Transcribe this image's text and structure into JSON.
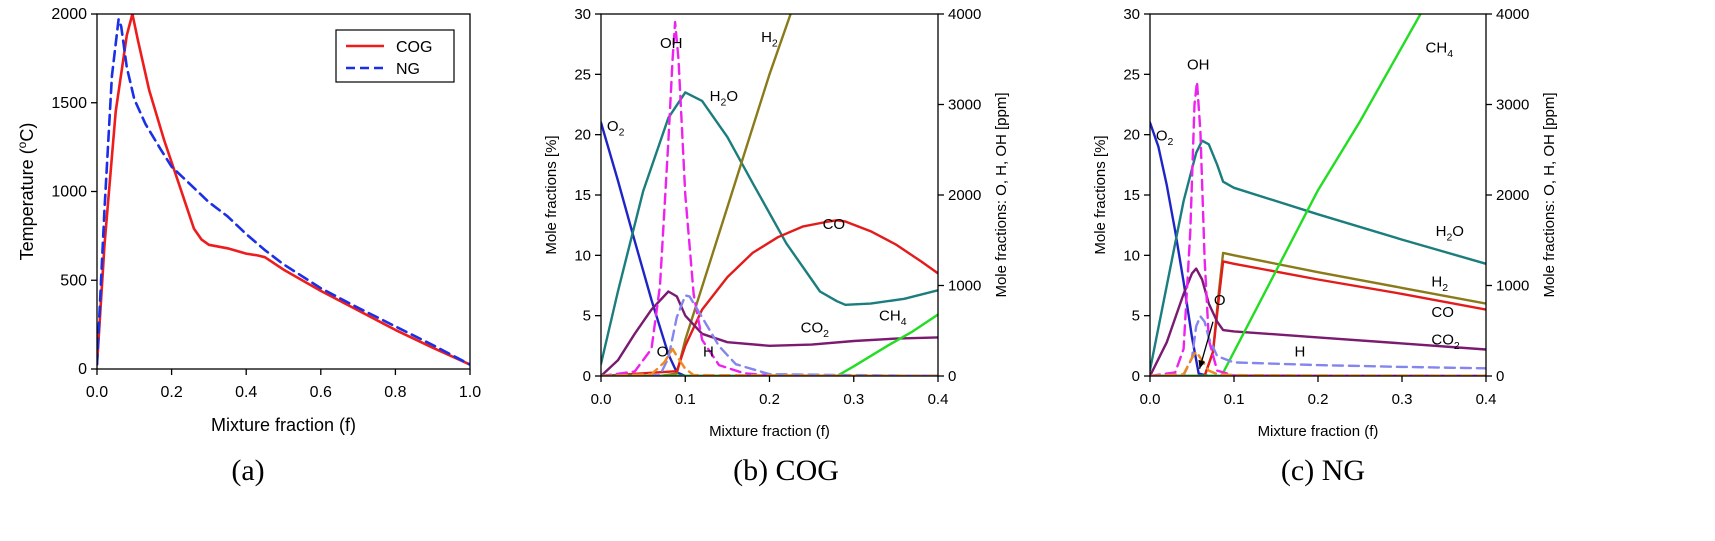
{
  "chart_data": [
    {
      "id": "a",
      "caption": "(a)",
      "type": "line",
      "xlabel": "Mixture fraction (f)",
      "ylabel": "Temperature (°C)",
      "ylabel_sup": "o",
      "xlim": [
        0,
        1.0
      ],
      "ylim": [
        0,
        2000
      ],
      "xticks": [
        "0.0",
        "0.2",
        "0.4",
        "0.6",
        "0.8",
        "1.0"
      ],
      "yticks": [
        "0",
        "500",
        "1000",
        "1500",
        "2000"
      ],
      "legend": {
        "position": "top-right",
        "entries": [
          "COG",
          "NG"
        ]
      },
      "series": [
        {
          "name": "COG",
          "color": "#ee1c1c",
          "dash": "solid",
          "x": [
            0,
            0.02,
            0.05,
            0.08,
            0.095,
            0.11,
            0.14,
            0.18,
            0.22,
            0.26,
            0.28,
            0.3,
            0.35,
            0.4,
            0.43,
            0.45,
            0.5,
            0.6,
            0.7,
            0.8,
            0.9,
            1.0
          ],
          "y": [
            25,
            700,
            1450,
            1880,
            2000,
            1850,
            1570,
            1290,
            1040,
            790,
            730,
            700,
            680,
            650,
            640,
            630,
            560,
            440,
            330,
            220,
            120,
            25
          ]
        },
        {
          "name": "NG",
          "color": "#1a2fe6",
          "dash": "dashed",
          "x": [
            0,
            0.02,
            0.04,
            0.058,
            0.065,
            0.08,
            0.1,
            0.13,
            0.17,
            0.2,
            0.25,
            0.3,
            0.35,
            0.4,
            0.45,
            0.5,
            0.6,
            0.7,
            0.8,
            0.9,
            1.0
          ],
          "y": [
            25,
            900,
            1650,
            1970,
            1930,
            1700,
            1520,
            1380,
            1240,
            1140,
            1040,
            940,
            860,
            760,
            670,
            590,
            455,
            345,
            240,
            135,
            25
          ]
        }
      ]
    },
    {
      "id": "b",
      "caption": "(b) COG",
      "type": "line",
      "xlabel": "Mixture fraction (f)",
      "ylabel": "Mole fractions [%]",
      "ylabel_right": "Mole fractions: O, H, OH [ppm]",
      "xlim": [
        0,
        0.4
      ],
      "ylim": [
        0,
        30
      ],
      "ylim_right": [
        0,
        4000
      ],
      "xticks": [
        "0.0",
        "0.1",
        "0.2",
        "0.3",
        "0.4"
      ],
      "yticks": [
        "0",
        "5",
        "10",
        "15",
        "20",
        "25",
        "30"
      ],
      "yticks_right": [
        "0",
        "1000",
        "2000",
        "3000",
        "4000"
      ],
      "labels": [
        {
          "text": "OH",
          "sub": "",
          "fx": 0.07,
          "fy": 27.2
        },
        {
          "text": "H",
          "sub": "2",
          "fx": 0.19,
          "fy": 27.7
        },
        {
          "text": "O",
          "sub": "2",
          "fx": 0.007,
          "fy": 20.3
        },
        {
          "text": "H",
          "sub": "2",
          "fx": 0.129,
          "fy": 22.8,
          "after": "O"
        },
        {
          "text": "CO",
          "sub": "",
          "fx": 0.263,
          "fy": 12.2
        },
        {
          "text": "CO",
          "sub": "2",
          "fx": 0.237,
          "fy": 3.6
        },
        {
          "text": "CH",
          "sub": "4",
          "fx": 0.33,
          "fy": 4.6
        },
        {
          "text": "O",
          "sub": "",
          "fx": 0.066,
          "fy": 1.6
        },
        {
          "text": "H",
          "sub": "",
          "fx": 0.121,
          "fy": 1.6
        }
      ],
      "series": [
        {
          "name": "O2",
          "axis": "left",
          "color": "#1f24c8",
          "dash": "solid",
          "x": [
            0,
            0.02,
            0.04,
            0.06,
            0.08,
            0.09,
            0.1,
            0.4
          ],
          "y": [
            21,
            16.2,
            11.2,
            6.3,
            1.8,
            0.3,
            0,
            0
          ]
        },
        {
          "name": "H2O",
          "axis": "left",
          "color": "#1b7d7d",
          "dash": "solid",
          "x": [
            0,
            0.02,
            0.05,
            0.08,
            0.1,
            0.12,
            0.15,
            0.18,
            0.22,
            0.26,
            0.28,
            0.29,
            0.32,
            0.36,
            0.4
          ],
          "y": [
            1,
            7,
            15.3,
            21.4,
            23.5,
            22.8,
            19.8,
            16,
            11,
            7,
            6.2,
            5.9,
            6,
            6.4,
            7.1
          ]
        },
        {
          "name": "H2",
          "axis": "left",
          "color": "#8a7a1a",
          "dash": "solid",
          "x": [
            0,
            0.07,
            0.09,
            0.1,
            0.15,
            0.2,
            0.225
          ],
          "y": [
            0,
            0,
            0.2,
            3,
            14,
            25,
            30
          ]
        },
        {
          "name": "CO",
          "axis": "left",
          "color": "#e31b1b",
          "dash": "solid",
          "x": [
            0,
            0.09,
            0.1,
            0.12,
            0.15,
            0.18,
            0.21,
            0.24,
            0.27,
            0.28,
            0.29,
            0.32,
            0.35,
            0.38,
            0.4
          ],
          "y": [
            0,
            0.4,
            2.5,
            5.5,
            8.2,
            10.2,
            11.5,
            12.4,
            12.8,
            12.9,
            12.8,
            12,
            10.9,
            9.5,
            8.5
          ]
        },
        {
          "name": "CO2",
          "axis": "left",
          "color": "#7a1a70",
          "dash": "solid",
          "x": [
            0,
            0.02,
            0.04,
            0.06,
            0.08,
            0.09,
            0.1,
            0.12,
            0.15,
            0.2,
            0.25,
            0.3,
            0.35,
            0.4
          ],
          "y": [
            0,
            1.3,
            3.5,
            5.5,
            7,
            6.6,
            5,
            3.5,
            2.8,
            2.5,
            2.6,
            2.9,
            3.1,
            3.2
          ]
        },
        {
          "name": "CH4",
          "axis": "left",
          "color": "#22dd22",
          "dash": "solid",
          "x": [
            0,
            0.28,
            0.3,
            0.34,
            0.37,
            0.4
          ],
          "y": [
            0,
            0,
            0.8,
            2.5,
            3.7,
            5.1
          ]
        },
        {
          "name": "OH",
          "axis": "right",
          "color": "#ee22ee",
          "dash": "dashed",
          "x": [
            0,
            0.04,
            0.06,
            0.07,
            0.08,
            0.085,
            0.088,
            0.092,
            0.1,
            0.11,
            0.12,
            0.14,
            0.17,
            0.2,
            0.4
          ],
          "y": [
            0,
            50,
            300,
            1000,
            2600,
            3500,
            3910,
            3500,
            2000,
            900,
            400,
            120,
            30,
            5,
            0
          ]
        },
        {
          "name": "H",
          "axis": "right",
          "color": "#8585ee",
          "dash": "dashed",
          "x": [
            0,
            0.07,
            0.08,
            0.09,
            0.1,
            0.105,
            0.12,
            0.14,
            0.16,
            0.2,
            0.4
          ],
          "y": [
            0,
            10,
            200,
            650,
            890,
            880,
            650,
            330,
            130,
            20,
            0
          ]
        },
        {
          "name": "O",
          "axis": "right",
          "color": "#ee8a20",
          "dash": "dashed",
          "x": [
            0,
            0.06,
            0.075,
            0.085,
            0.09,
            0.1,
            0.11,
            0.4
          ],
          "y": [
            0,
            20,
            150,
            300,
            220,
            80,
            10,
            0
          ]
        }
      ]
    },
    {
      "id": "c",
      "caption": "(c) NG",
      "type": "line",
      "xlabel": "Mixture fraction (f)",
      "ylabel": "Mole fractions [%]",
      "ylabel_right": "Mole fractions: O, H, OH [ppm]",
      "xlim": [
        0,
        0.4
      ],
      "ylim": [
        0,
        30
      ],
      "ylim_right": [
        0,
        4000
      ],
      "xticks": [
        "0.0",
        "0.1",
        "0.2",
        "0.3",
        "0.4"
      ],
      "yticks": [
        "0",
        "5",
        "10",
        "15",
        "20",
        "25",
        "30"
      ],
      "yticks_right": [
        "0",
        "1000",
        "2000",
        "3000",
        "4000"
      ],
      "labels": [
        {
          "text": "OH",
          "sub": "",
          "fx": 0.044,
          "fy": 25.4
        },
        {
          "text": "O",
          "sub": "2",
          "fx": 0.007,
          "fy": 19.5
        },
        {
          "text": "CH",
          "sub": "4",
          "fx": 0.328,
          "fy": 26.8
        },
        {
          "text": "H",
          "sub": "2",
          "fx": 0.34,
          "fy": 11.6,
          "after": "O"
        },
        {
          "text": "H",
          "sub": "2",
          "fx": 0.335,
          "fy": 7.4
        },
        {
          "text": "CO",
          "sub": "",
          "fx": 0.335,
          "fy": 4.9
        },
        {
          "text": "CO",
          "sub": "2",
          "fx": 0.335,
          "fy": 2.6
        },
        {
          "text": "O",
          "sub": "",
          "fx": 0.076,
          "fy": 5.9
        },
        {
          "text": "H",
          "sub": "",
          "fx": 0.172,
          "fy": 1.6
        }
      ],
      "arrow": {
        "from": [
          0.075,
          4.5
        ],
        "to": [
          0.059,
          0.6
        ]
      },
      "series": [
        {
          "name": "O2",
          "axis": "left",
          "color": "#1f24c8",
          "dash": "solid",
          "x": [
            0,
            0.01,
            0.02,
            0.03,
            0.04,
            0.05,
            0.058,
            0.07,
            0.4
          ],
          "y": [
            21,
            19,
            15.8,
            12,
            7.8,
            3.2,
            0.2,
            0,
            0
          ]
        },
        {
          "name": "H2O",
          "axis": "left",
          "color": "#1b7d7d",
          "dash": "solid",
          "x": [
            0,
            0.02,
            0.04,
            0.055,
            0.062,
            0.07,
            0.08,
            0.087,
            0.1,
            0.2,
            0.3,
            0.4
          ],
          "y": [
            0.5,
            7.5,
            14.5,
            18.5,
            19.5,
            19.2,
            17.5,
            16.1,
            15.6,
            13.4,
            11.3,
            9.3
          ]
        },
        {
          "name": "H2",
          "axis": "left",
          "color": "#8a7a1a",
          "dash": "solid",
          "x": [
            0,
            0.065,
            0.075,
            0.082,
            0.087,
            0.1,
            0.2,
            0.3,
            0.4
          ],
          "y": [
            0,
            0,
            2,
            7,
            10.2,
            10,
            8.6,
            7.3,
            6
          ]
        },
        {
          "name": "CO",
          "axis": "left",
          "color": "#e31b1b",
          "dash": "solid",
          "x": [
            0,
            0.065,
            0.075,
            0.082,
            0.087,
            0.1,
            0.2,
            0.3,
            0.4
          ],
          "y": [
            0,
            0,
            2,
            6.5,
            9.5,
            9.3,
            8,
            6.8,
            5.5
          ]
        },
        {
          "name": "CO2",
          "axis": "left",
          "color": "#7a1a70",
          "dash": "solid",
          "x": [
            0,
            0.02,
            0.04,
            0.05,
            0.055,
            0.062,
            0.07,
            0.08,
            0.087,
            0.1,
            0.2,
            0.3,
            0.4
          ],
          "y": [
            0,
            2.8,
            6.8,
            8.5,
            8.9,
            8,
            6,
            4.5,
            3.8,
            3.7,
            3.2,
            2.7,
            2.2
          ]
        },
        {
          "name": "CH4",
          "axis": "left",
          "color": "#22dd22",
          "dash": "solid",
          "x": [
            0,
            0.085,
            0.15,
            0.2,
            0.25,
            0.322
          ],
          "y": [
            0,
            0,
            8.7,
            15.4,
            21.1,
            30
          ]
        },
        {
          "name": "OH",
          "axis": "right",
          "color": "#ee22ee",
          "dash": "dashed",
          "x": [
            0,
            0.03,
            0.04,
            0.048,
            0.053,
            0.056,
            0.06,
            0.065,
            0.07,
            0.08,
            0.1,
            0.4
          ],
          "y": [
            0,
            40,
            300,
            1600,
            3000,
            3250,
            2700,
            1300,
            400,
            60,
            5,
            0
          ]
        },
        {
          "name": "H",
          "axis": "right",
          "color": "#8585ee",
          "dash": "dashed",
          "x": [
            0,
            0.04,
            0.05,
            0.055,
            0.06,
            0.065,
            0.07,
            0.08,
            0.1,
            0.2,
            0.3,
            0.4
          ],
          "y": [
            0,
            10,
            200,
            550,
            660,
            600,
            420,
            220,
            150,
            120,
            100,
            85
          ]
        },
        {
          "name": "O",
          "axis": "right",
          "color": "#ee8a20",
          "dash": "dashed",
          "x": [
            0,
            0.04,
            0.05,
            0.055,
            0.06,
            0.07,
            0.08,
            0.1,
            0.2,
            0.4
          ],
          "y": [
            0,
            20,
            200,
            270,
            200,
            60,
            20,
            10,
            5,
            3
          ]
        }
      ]
    }
  ]
}
